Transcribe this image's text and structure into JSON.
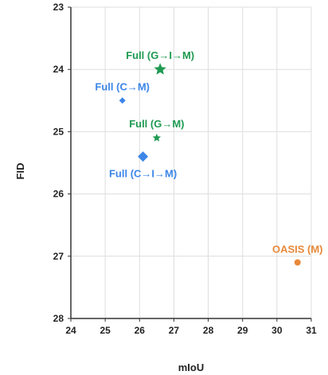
{
  "chart_data": {
    "type": "scatter",
    "title": "",
    "xlabel": "mIoU",
    "ylabel": "FID",
    "xlim": [
      24,
      31
    ],
    "ylim": [
      28,
      23
    ],
    "y_inverted": true,
    "grid": true,
    "x_ticks": [
      "24",
      "25",
      "26",
      "27",
      "28",
      "29",
      "30",
      "31"
    ],
    "y_ticks": [
      "23",
      "24",
      "25",
      "26",
      "27",
      "28"
    ],
    "points": [
      {
        "label": "Full (G→I→M)",
        "x": 26.6,
        "y": 24.0,
        "marker": "star",
        "size": "large",
        "color": "#1e9a52"
      },
      {
        "label": "Full (C→M)",
        "x": 25.5,
        "y": 24.5,
        "marker": "diamond",
        "size": "small",
        "color": "#3d86e8"
      },
      {
        "label": "Full (G→M)",
        "x": 26.5,
        "y": 25.1,
        "marker": "star",
        "size": "small",
        "color": "#1e9a52"
      },
      {
        "label": "Full (C→I→M)",
        "x": 26.1,
        "y": 25.4,
        "marker": "diamond",
        "size": "large",
        "color": "#3d86e8"
      },
      {
        "label": "OASIS (M)",
        "x": 30.6,
        "y": 27.1,
        "marker": "circle",
        "size": "small",
        "color": "#e8893a"
      }
    ]
  }
}
